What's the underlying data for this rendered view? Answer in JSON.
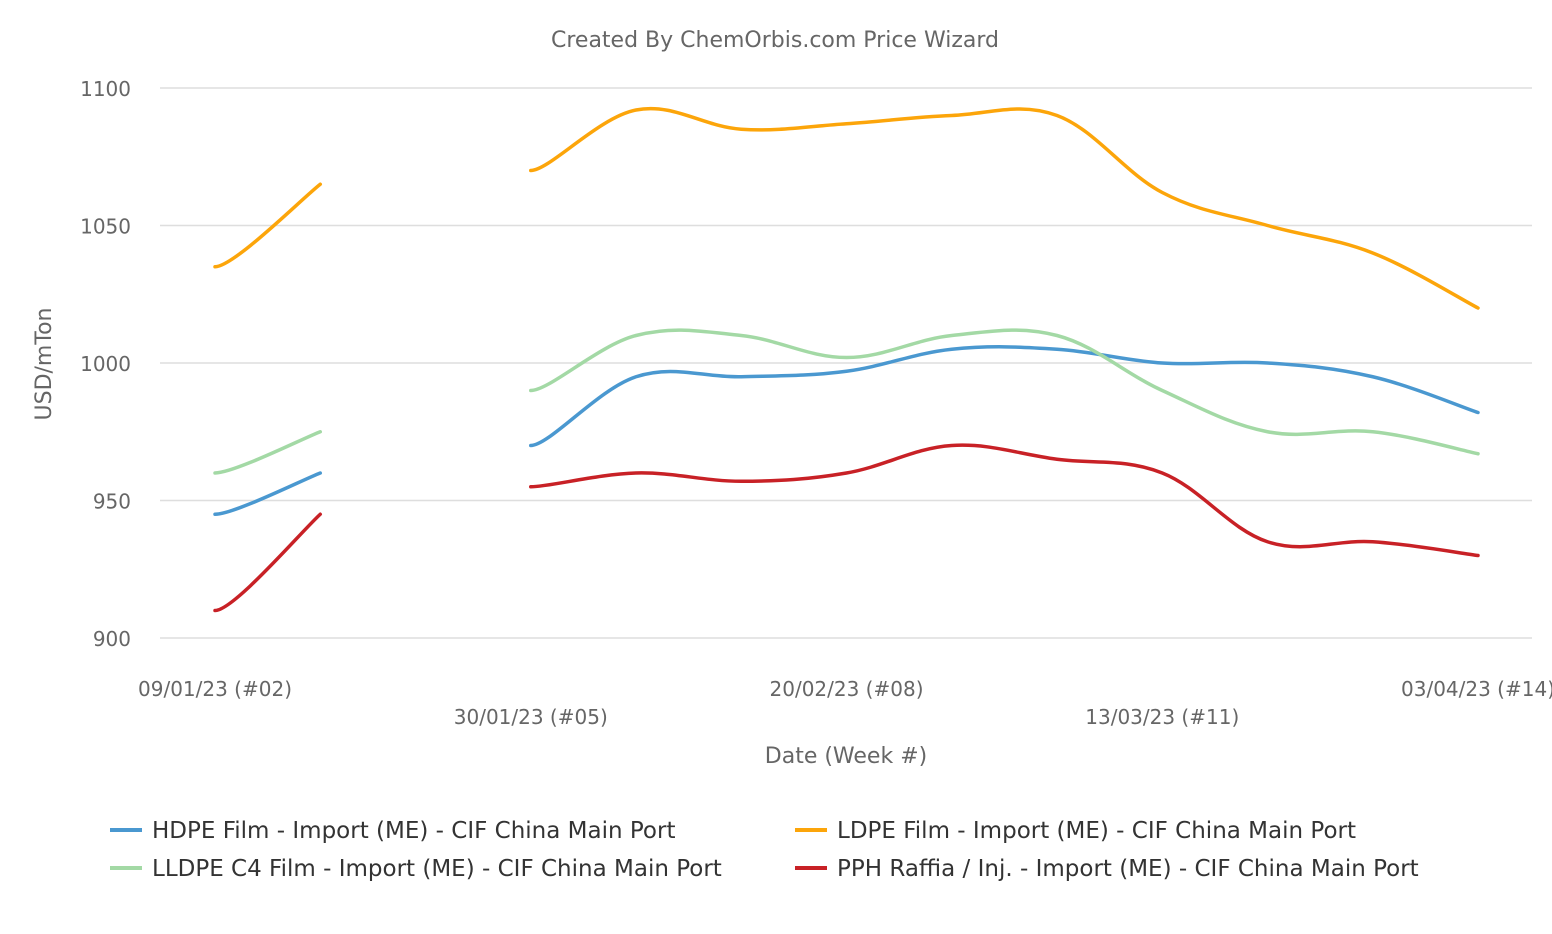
{
  "chart_data": {
    "type": "line",
    "title": "Created By ChemOrbis.com Price Wizard",
    "xlabel": "Date (Week #)",
    "ylabel": "USD/mTon",
    "ylim": [
      900,
      1100
    ],
    "yticks": [
      900,
      950,
      1000,
      1050,
      1100
    ],
    "x": [
      2,
      3,
      4,
      5,
      6,
      7,
      8,
      9,
      10,
      11,
      12,
      13,
      14
    ],
    "xtick_labels": [
      {
        "week": 2,
        "label": "09/01/23 (#02)"
      },
      {
        "week": 5,
        "label": "30/01/23 (#05)"
      },
      {
        "week": 8,
        "label": "20/02/23 (#08)"
      },
      {
        "week": 11,
        "label": "13/03/23 (#11)"
      },
      {
        "week": 14,
        "label": "03/04/23 (#14)"
      }
    ],
    "grid": true,
    "legend_position": "bottom",
    "series": [
      {
        "name": "HDPE Film - Import (ME) - CIF China Main Port",
        "color": "#4a98d0",
        "values": [
          945,
          960,
          null,
          970,
          995,
          995,
          997,
          1005,
          1005,
          1000,
          1000,
          995,
          982
        ]
      },
      {
        "name": "LDPE Film - Import (ME) - CIF China Main Port",
        "color": "#fca50a",
        "values": [
          1035,
          1065,
          null,
          1070,
          1092,
          1085,
          1087,
          1090,
          1090,
          1062,
          1050,
          1040,
          1020
        ]
      },
      {
        "name": "LLDPE C4 Film - Import (ME) - CIF China Main Port",
        "color": "#a3d9a5",
        "values": [
          960,
          975,
          null,
          990,
          1010,
          1010,
          1002,
          1010,
          1010,
          990,
          975,
          975,
          967
        ]
      },
      {
        "name": "PPH Raffia / Inj. - Import (ME) - CIF China Main Port",
        "color": "#c82126",
        "values": [
          910,
          945,
          null,
          955,
          960,
          957,
          960,
          970,
          965,
          960,
          935,
          935,
          930
        ]
      }
    ]
  }
}
